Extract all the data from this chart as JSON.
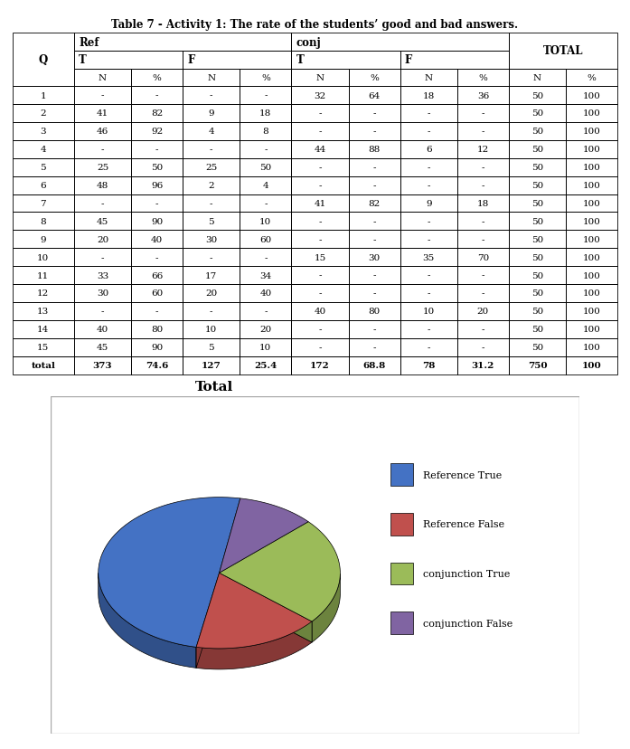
{
  "title": "Table 7 - Activity 1: The rate of the students’ good and bad answers.",
  "rows": [
    [
      "1",
      "-",
      "-",
      "-",
      "-",
      "32",
      "64",
      "18",
      "36",
      "50",
      "100"
    ],
    [
      "2",
      "41",
      "82",
      "9",
      "18",
      "-",
      "-",
      "-",
      "-",
      "50",
      "100"
    ],
    [
      "3",
      "46",
      "92",
      "4",
      "8",
      "-",
      "-",
      "-",
      "-",
      "50",
      "100"
    ],
    [
      "4",
      "-",
      "-",
      "-",
      "-",
      "44",
      "88",
      "6",
      "12",
      "50",
      "100"
    ],
    [
      "5",
      "25",
      "50",
      "25",
      "50",
      "-",
      "-",
      "-",
      "-",
      "50",
      "100"
    ],
    [
      "6",
      "48",
      "96",
      "2",
      "4",
      "-",
      "-",
      "-",
      "-",
      "50",
      "100"
    ],
    [
      "7",
      "-",
      "-",
      "-",
      "-",
      "41",
      "82",
      "9",
      "18",
      "50",
      "100"
    ],
    [
      "8",
      "45",
      "90",
      "5",
      "10",
      "-",
      "-",
      "-",
      "-",
      "50",
      "100"
    ],
    [
      "9",
      "20",
      "40",
      "30",
      "60",
      "-",
      "-",
      "-",
      "-",
      "50",
      "100"
    ],
    [
      "10",
      "-",
      "-",
      "-",
      "-",
      "15",
      "30",
      "35",
      "70",
      "50",
      "100"
    ],
    [
      "11",
      "33",
      "66",
      "17",
      "34",
      "-",
      "-",
      "-",
      "-",
      "50",
      "100"
    ],
    [
      "12",
      "30",
      "60",
      "20",
      "40",
      "-",
      "-",
      "-",
      "-",
      "50",
      "100"
    ],
    [
      "13",
      "-",
      "-",
      "-",
      "-",
      "40",
      "80",
      "10",
      "20",
      "50",
      "100"
    ],
    [
      "14",
      "40",
      "80",
      "10",
      "20",
      "-",
      "-",
      "-",
      "-",
      "50",
      "100"
    ],
    [
      "15",
      "45",
      "90",
      "5",
      "10",
      "-",
      "-",
      "-",
      "-",
      "50",
      "100"
    ],
    [
      "total",
      "373",
      "74.6",
      "127",
      "25.4",
      "172",
      "68.8",
      "78",
      "31.2",
      "750",
      "100"
    ]
  ],
  "pie_title": "Total",
  "pie_values": [
    373,
    127,
    172,
    78
  ],
  "pie_labels": [
    "Reference True",
    "Reference False",
    "conjunction True",
    "conjunction False"
  ],
  "pie_colors": [
    "#4472C4",
    "#C0504D",
    "#9BBB59",
    "#8064A2"
  ],
  "background_color": "#FFFFFF"
}
